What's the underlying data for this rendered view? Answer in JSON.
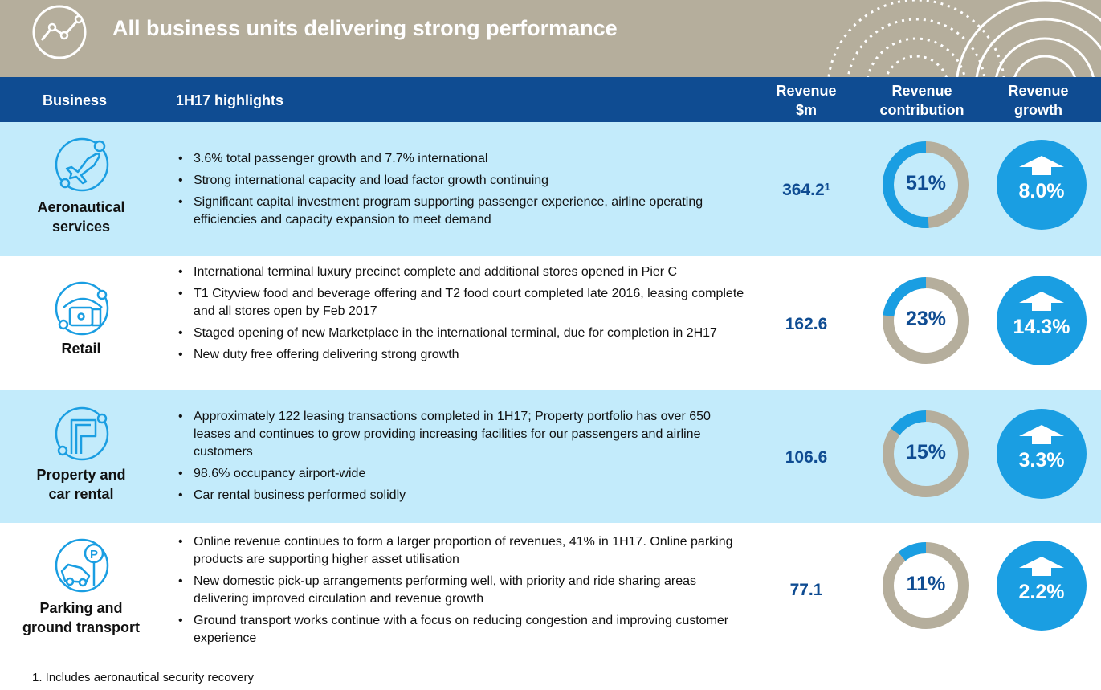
{
  "header": {
    "title": "All business units delivering strong performance",
    "icon": "line-chart-icon"
  },
  "table_header": {
    "business": "Business",
    "highlights": "1H17 highlights",
    "revenue_line1": "Revenue",
    "revenue_line2": "$m",
    "contribution_line1": "Revenue",
    "contribution_line2": "contribution",
    "growth_line1": "Revenue",
    "growth_line2": "growth"
  },
  "colors": {
    "header_bar": "#b5ae9c",
    "table_header": "#0f4c92",
    "row_highlight": "#c3ebfb",
    "accent_blue": "#1a9ee2",
    "donut_remainder": "#b5ae9c"
  },
  "rows": [
    {
      "name_line1": "Aeronautical",
      "name_line2": "services",
      "icon": "airplane-icon",
      "bullets": [
        "3.6% total passenger growth and 7.7% international",
        "Strong international capacity and load factor growth continuing",
        "Significant capital investment program supporting passenger experience, airline operating efficiencies and capacity expansion to meet demand"
      ],
      "revenue": "364.2",
      "revenue_footnote_marker": "1",
      "contribution_label": "51%",
      "contribution_value": 51,
      "growth_label": "8.0%"
    },
    {
      "name_line1": "Retail",
      "name_line2": "",
      "icon": "shopping-bag-icon",
      "bullets": [
        "International terminal luxury precinct complete and additional stores opened in Pier C",
        "T1 Cityview food and beverage offering and T2 food court completed late 2016, leasing complete and all stores open by Feb 2017",
        "Staged opening of new Marketplace in the international terminal, due for completion in 2H17",
        "New duty free offering delivering strong growth"
      ],
      "revenue": "162.6",
      "revenue_footnote_marker": "",
      "contribution_label": "23%",
      "contribution_value": 23,
      "growth_label": "14.3%"
    },
    {
      "name_line1": "Property and",
      "name_line2": "car rental",
      "icon": "building-icon",
      "bullets": [
        "Approximately 122 leasing transactions completed in 1H17; Property portfolio has over 650 leases and continues to grow providing increasing facilities for our passengers and airline customers",
        "98.6% occupancy airport-wide",
        "Car rental business performed solidly"
      ],
      "revenue": "106.6",
      "revenue_footnote_marker": "",
      "contribution_label": "15%",
      "contribution_value": 15,
      "growth_label": "3.3%"
    },
    {
      "name_line1": "Parking and",
      "name_line2": "ground transport",
      "icon": "parking-car-icon",
      "bullets": [
        "Online revenue continues to form a larger proportion of revenues, 41% in 1H17. Online parking products are supporting higher asset utilisation",
        "New domestic pick-up arrangements performing well, with priority and ride sharing areas delivering improved circulation and revenue growth",
        "Ground transport works continue with a focus on reducing congestion and improving customer experience"
      ],
      "revenue": "77.1",
      "revenue_footnote_marker": "",
      "contribution_label": "11%",
      "contribution_value": 11,
      "growth_label": "2.2%"
    }
  ],
  "footnote": "1.  Includes aeronautical security recovery"
}
